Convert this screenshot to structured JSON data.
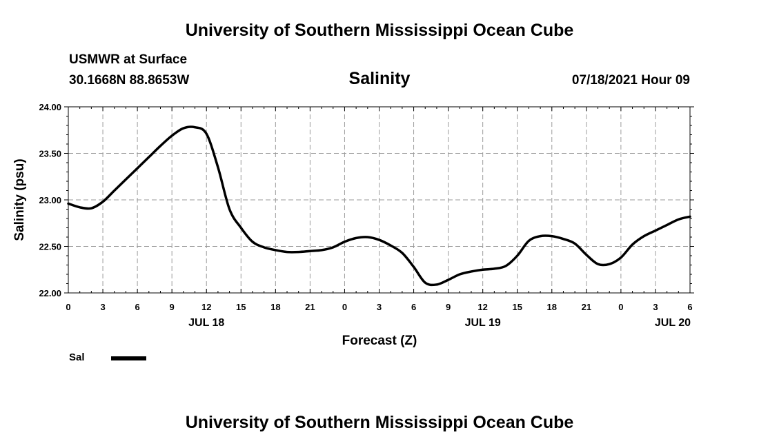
{
  "header": {
    "title": "University of Southern Mississippi Ocean Cube",
    "station": "USMWR at Surface",
    "coords": "30.1668N  88.8653W",
    "variable": "Salinity",
    "datetime": "07/18/2021 Hour 09"
  },
  "footer": {
    "title": "University of Southern Mississippi Ocean Cube"
  },
  "legend": {
    "label": "Sal"
  },
  "chart_data": {
    "type": "line",
    "title": "Salinity",
    "xlabel": "Forecast (Z)",
    "ylabel": "Salinity (psu)",
    "ylim": [
      22.0,
      24.0
    ],
    "yticks": [
      "22.00",
      "22.50",
      "23.00",
      "23.50",
      "24.00"
    ],
    "xlim": [
      0,
      54
    ],
    "xticks": [
      {
        "x": 0,
        "label": "0"
      },
      {
        "x": 3,
        "label": "3"
      },
      {
        "x": 6,
        "label": "6"
      },
      {
        "x": 9,
        "label": "9"
      },
      {
        "x": 12,
        "label": "12"
      },
      {
        "x": 15,
        "label": "15"
      },
      {
        "x": 18,
        "label": "18"
      },
      {
        "x": 21,
        "label": "21"
      },
      {
        "x": 24,
        "label": "0"
      },
      {
        "x": 27,
        "label": "3"
      },
      {
        "x": 30,
        "label": "6"
      },
      {
        "x": 33,
        "label": "9"
      },
      {
        "x": 36,
        "label": "12"
      },
      {
        "x": 39,
        "label": "15"
      },
      {
        "x": 42,
        "label": "18"
      },
      {
        "x": 45,
        "label": "21"
      },
      {
        "x": 48,
        "label": "0"
      },
      {
        "x": 51,
        "label": "3"
      },
      {
        "x": 54,
        "label": "6"
      }
    ],
    "day_labels": [
      {
        "x": 12,
        "label": "JUL 18"
      },
      {
        "x": 36,
        "label": "JUL 19"
      },
      {
        "x": 52.5,
        "label": "JUL 20"
      }
    ],
    "grid": true,
    "series": [
      {
        "name": "Sal",
        "color": "#000000",
        "x": [
          0,
          1,
          2,
          3,
          4,
          5,
          6,
          7,
          8,
          9,
          10,
          11,
          12,
          13,
          14,
          15,
          16,
          17,
          18,
          19,
          20,
          21,
          22,
          23,
          24,
          25,
          26,
          27,
          28,
          29,
          30,
          31,
          32,
          33,
          34,
          35,
          36,
          37,
          38,
          39,
          40,
          41,
          42,
          43,
          44,
          45,
          46,
          47,
          48,
          49,
          50,
          51,
          52,
          53,
          54
        ],
        "values": [
          22.96,
          22.92,
          22.91,
          22.98,
          23.1,
          23.22,
          23.34,
          23.46,
          23.58,
          23.69,
          23.77,
          23.78,
          23.71,
          23.35,
          22.9,
          22.7,
          22.55,
          22.49,
          22.46,
          22.44,
          22.44,
          22.45,
          22.46,
          22.49,
          22.55,
          22.59,
          22.6,
          22.57,
          22.51,
          22.43,
          22.28,
          22.11,
          22.09,
          22.14,
          22.2,
          22.23,
          22.25,
          22.26,
          22.29,
          22.4,
          22.56,
          22.61,
          22.61,
          22.58,
          22.53,
          22.41,
          22.31,
          22.31,
          22.38,
          22.52,
          22.61,
          22.67,
          22.73,
          22.79,
          22.82
        ]
      }
    ]
  }
}
